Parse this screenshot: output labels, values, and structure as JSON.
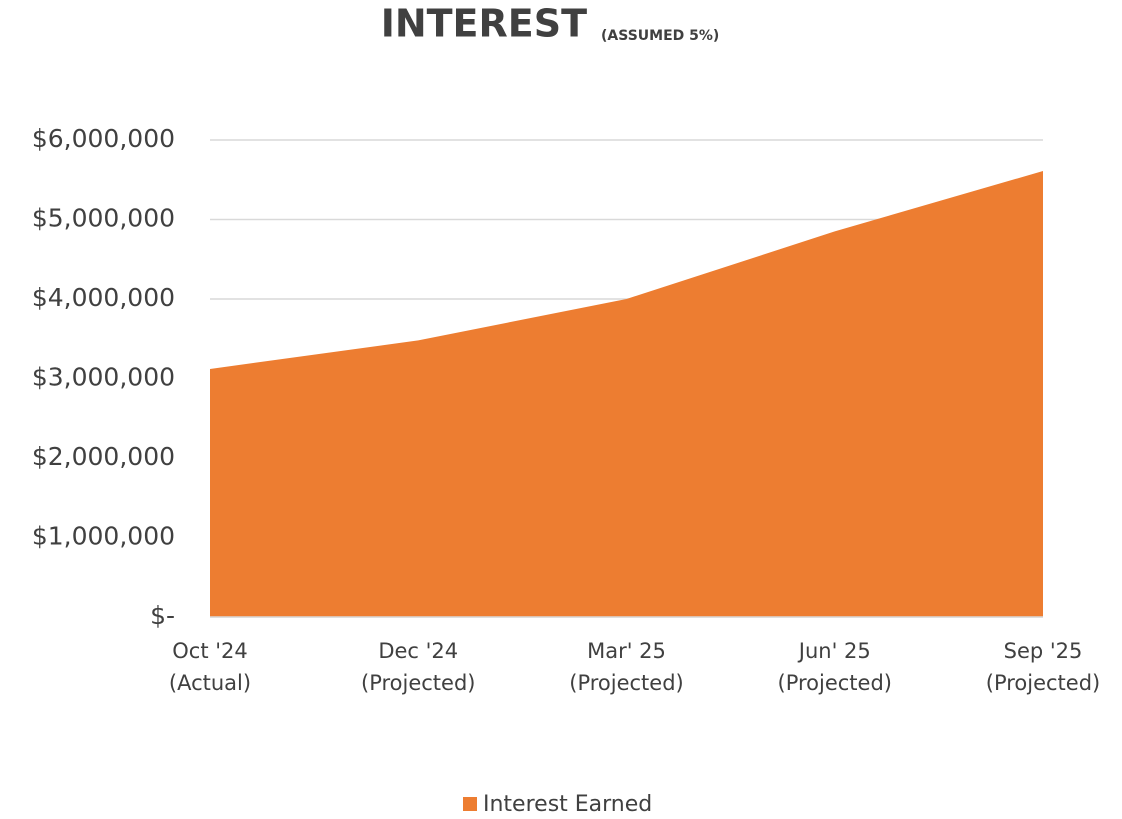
{
  "chart_data": {
    "type": "area",
    "title": "INTEREST",
    "subtitle": "(ASSUMED 5%)",
    "categories": [
      [
        "Oct '24",
        "(Actual)"
      ],
      [
        "Dec '24",
        "(Projected)"
      ],
      [
        "Mar' 25",
        "(Projected)"
      ],
      [
        "Jun' 25",
        "(Projected)"
      ],
      [
        "Sep '25",
        "(Projected)"
      ]
    ],
    "series": [
      {
        "name": "Interest Earned",
        "color": "#ed7d31",
        "values": [
          3120000,
          3480000,
          4000000,
          4850000,
          5610000
        ]
      }
    ],
    "ylim": [
      0,
      6000000
    ],
    "yticks": [
      {
        "value": 0,
        "label": "$-"
      },
      {
        "value": 1000000,
        "label": "$1,000,000"
      },
      {
        "value": 2000000,
        "label": "$2,000,000"
      },
      {
        "value": 3000000,
        "label": "$3,000,000"
      },
      {
        "value": 4000000,
        "label": "$4,000,000"
      },
      {
        "value": 5000000,
        "label": "$5,000,000"
      },
      {
        "value": 6000000,
        "label": "$6,000,000"
      }
    ],
    "grid": true,
    "legend": "bottom"
  }
}
